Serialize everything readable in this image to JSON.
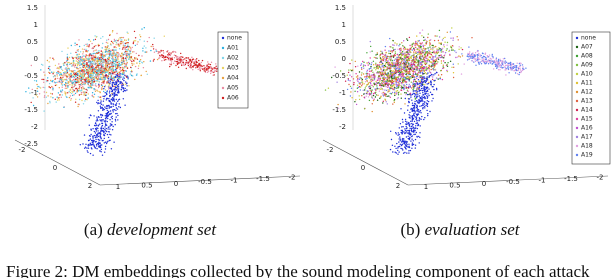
{
  "panels": [
    {
      "yticks": [
        "1.5",
        "1",
        "0.5",
        "0",
        "-0.5",
        "-1",
        "-1.5",
        "-2",
        "-2.5"
      ],
      "zticks": [
        "-2",
        "0",
        "2"
      ],
      "xticks": [
        "1",
        "0.5",
        "0",
        "-0.5",
        "-1",
        "-1.5",
        "-2"
      ],
      "legend": [
        {
          "name": "none",
          "color": "#1f2fd8"
        },
        {
          "name": "A01",
          "color": "#2bb0e0"
        },
        {
          "name": "A02",
          "color": "#7fd4e8"
        },
        {
          "name": "A03",
          "color": "#e8d060"
        },
        {
          "name": "A04",
          "color": "#e8a040"
        },
        {
          "name": "A05",
          "color": "#e88aa0"
        },
        {
          "name": "A06",
          "color": "#d02020"
        }
      ],
      "caption_label": "(a)",
      "caption_text": "development set"
    },
    {
      "yticks": [
        "1.5",
        "1",
        "0.5",
        "0",
        "-0.5",
        "-1",
        "-1.5",
        "-2"
      ],
      "zticks": [
        "-2",
        "0",
        "2"
      ],
      "xticks": [
        "1",
        "0.5",
        "0",
        "-0.5",
        "-1",
        "-1.5",
        "-2"
      ],
      "legend": [
        {
          "name": "none",
          "color": "#1f2fd8"
        },
        {
          "name": "A07",
          "color": "#1a6010"
        },
        {
          "name": "A08",
          "color": "#3ca030"
        },
        {
          "name": "A09",
          "color": "#80c040"
        },
        {
          "name": "A10",
          "color": "#c0d040"
        },
        {
          "name": "A11",
          "color": "#e0c030"
        },
        {
          "name": "A12",
          "color": "#e09030"
        },
        {
          "name": "A13",
          "color": "#e06040"
        },
        {
          "name": "A14",
          "color": "#d02050"
        },
        {
          "name": "A15",
          "color": "#e040a0"
        },
        {
          "name": "A16",
          "color": "#c050d0"
        },
        {
          "name": "A17",
          "color": "#a080e0"
        },
        {
          "name": "A18",
          "color": "#e0a0e0"
        },
        {
          "name": "A19",
          "color": "#6080f0"
        }
      ],
      "caption_label": "(b)",
      "caption_text": "evaluation set"
    }
  ],
  "figure_caption": "Figure 2: DM embeddings collected by the sound modeling component of each attack"
}
